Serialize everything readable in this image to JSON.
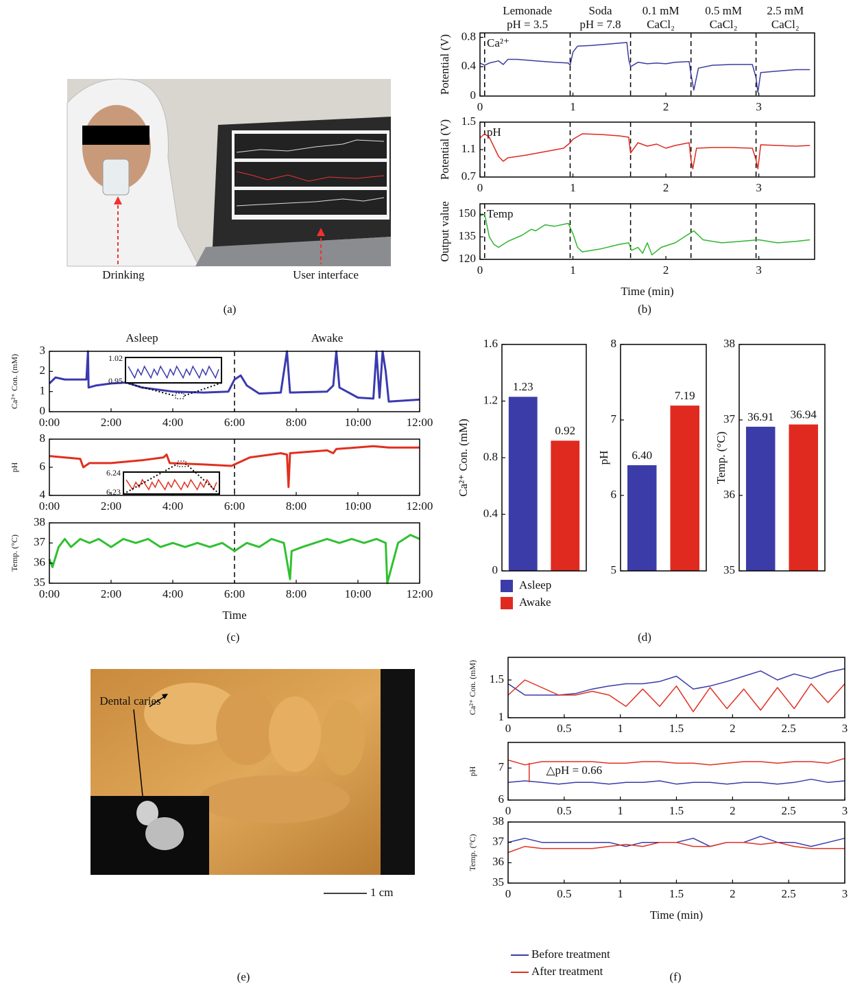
{
  "chart_data": [
    {
      "type": "line",
      "ylabel": "Potential (V)",
      "xlim": [
        0,
        3.6
      ],
      "ylim": [
        0,
        0.86
      ],
      "xticks": [
        0,
        1,
        2,
        3
      ],
      "yticks": [
        0,
        0.4,
        0.8
      ],
      "vlines": [
        0.05,
        0.97,
        1.62,
        2.27,
        2.97
      ],
      "legend": "top left",
      "conditions": [
        [
          "Lemonade",
          "pH = 3.5"
        ],
        [
          "Soda",
          "pH = 7.8"
        ],
        [
          "0.1 mM",
          "CaCl₂"
        ],
        [
          "0.5 mM",
          "CaCl₂"
        ],
        [
          "2.5 mM",
          "CaCl₂"
        ]
      ],
      "x": [
        0,
        0.05,
        0.1,
        0.2,
        0.25,
        0.3,
        0.4,
        0.6,
        0.8,
        0.95,
        0.97,
        1,
        1.05,
        1.2,
        1.4,
        1.58,
        1.6,
        1.62,
        1.7,
        1.8,
        1.9,
        2,
        2.1,
        2.25,
        2.27,
        2.3,
        2.35,
        2.5,
        2.7,
        2.93,
        2.97,
        2.99,
        3.02,
        3.2,
        3.4,
        3.55
      ],
      "series": [
        {
          "name": "Ca²⁺",
          "color": "#3b3ba0",
          "values": [
            0.45,
            0.42,
            0.45,
            0.48,
            0.43,
            0.5,
            0.5,
            0.48,
            0.46,
            0.45,
            0.42,
            0.6,
            0.68,
            0.69,
            0.71,
            0.73,
            0.5,
            0.4,
            0.46,
            0.44,
            0.45,
            0.44,
            0.46,
            0.47,
            0.3,
            0.08,
            0.38,
            0.42,
            0.43,
            0.43,
            0.25,
            0.05,
            0.32,
            0.34,
            0.36,
            0.36
          ]
        }
      ]
    },
    {
      "type": "line",
      "ylabel": "Potential (V)",
      "xlim": [
        0,
        3.6
      ],
      "ylim": [
        0.7,
        1.5
      ],
      "xticks": [
        0,
        1,
        2,
        3
      ],
      "yticks": [
        0.7,
        1.1,
        1.5
      ],
      "vlines": [
        0.05,
        0.97,
        1.62,
        2.27,
        2.97
      ],
      "legend": "top left",
      "x": [
        0,
        0.05,
        0.1,
        0.2,
        0.25,
        0.3,
        0.5,
        0.7,
        0.9,
        0.97,
        1,
        1.1,
        1.3,
        1.5,
        1.6,
        1.62,
        1.7,
        1.8,
        1.9,
        2,
        2.1,
        2.25,
        2.27,
        2.29,
        2.33,
        2.5,
        2.7,
        2.93,
        2.97,
        2.99,
        3.02,
        3.2,
        3.4,
        3.55
      ],
      "series": [
        {
          "name": "pH",
          "color": "#e0281e",
          "values": [
            1.27,
            1.33,
            1.28,
            1.0,
            0.93,
            0.98,
            1.02,
            1.07,
            1.12,
            1.2,
            1.25,
            1.33,
            1.32,
            1.3,
            1.28,
            1.05,
            1.2,
            1.15,
            1.18,
            1.12,
            1.16,
            1.2,
            0.95,
            0.82,
            1.12,
            1.13,
            1.13,
            1.12,
            0.95,
            0.82,
            1.17,
            1.16,
            1.15,
            1.16
          ]
        }
      ]
    },
    {
      "type": "line",
      "ylabel": "Output value",
      "xlabel": "Time (min)",
      "panel_label": "(b)",
      "xlim": [
        0,
        3.6
      ],
      "ylim": [
        120,
        157
      ],
      "xticks": [
        0,
        1,
        2,
        3
      ],
      "yticks": [
        120,
        135,
        150
      ],
      "vlines": [
        0.05,
        0.97,
        1.62,
        2.27,
        2.97
      ],
      "legend": "top left",
      "x": [
        0,
        0.05,
        0.1,
        0.15,
        0.2,
        0.3,
        0.45,
        0.55,
        0.6,
        0.7,
        0.8,
        0.95,
        1,
        1.05,
        1.1,
        1.3,
        1.5,
        1.6,
        1.63,
        1.7,
        1.75,
        1.8,
        1.85,
        1.95,
        2.1,
        2.25,
        2.3,
        2.4,
        2.6,
        2.8,
        3,
        3.2,
        3.4,
        3.55
      ],
      "series": [
        {
          "name": "Temp",
          "color": "#2fb52f",
          "values": [
            149,
            150,
            135,
            130,
            128,
            132,
            136,
            140,
            139,
            143,
            142,
            144,
            137,
            128,
            125,
            127,
            130,
            131,
            126,
            128,
            124,
            131,
            123,
            128,
            131,
            137,
            139,
            133,
            131,
            132,
            133,
            131,
            132,
            133
          ]
        }
      ]
    },
    {
      "type": "line",
      "ylabel": "Ca²⁺ Con. (mM)",
      "xlim": [
        0,
        12
      ],
      "ylim": [
        0,
        3
      ],
      "yticks": [
        0,
        1,
        2,
        3
      ],
      "xticks": [
        {
          "value": 0,
          "label": "0:00"
        },
        {
          "value": 2,
          "label": "2:00"
        },
        {
          "value": 4,
          "label": "4:00"
        },
        {
          "value": 6,
          "label": "6:00"
        },
        {
          "value": 8,
          "label": "8:00"
        },
        {
          "value": 10,
          "label": "10:00"
        },
        {
          "value": 12,
          "label": "12:00"
        }
      ],
      "vlines": [
        6
      ],
      "phases": [
        "Asleep",
        "Awake"
      ],
      "inset_labels": [
        1.02,
        0.95
      ],
      "x": [
        0,
        0.2,
        0.5,
        1,
        1.2,
        1.25,
        1.27,
        1.5,
        2,
        2.5,
        3,
        3.5,
        4,
        5,
        5.8,
        6,
        6.2,
        6.4,
        6.8,
        7.5,
        7.7,
        7.8,
        9,
        9.2,
        9.3,
        9.4,
        10,
        10.5,
        10.6,
        10.7,
        10.8,
        10.9,
        11,
        12
      ],
      "series": [
        {
          "color": "#3a3ab0",
          "values": [
            1.4,
            1.7,
            1.6,
            1.6,
            1.6,
            3,
            1.2,
            1.3,
            1.4,
            1.45,
            1.2,
            1.1,
            1,
            0.95,
            1,
            1.6,
            1.8,
            1.3,
            0.9,
            0.95,
            3,
            0.95,
            1,
            1.3,
            3,
            1.2,
            0.7,
            0.65,
            3,
            0.7,
            3,
            2,
            0.5,
            0.6
          ]
        }
      ]
    },
    {
      "type": "line",
      "ylabel": "pH",
      "xlim": [
        0,
        12
      ],
      "ylim": [
        4,
        8
      ],
      "yticks": [
        4,
        6,
        8
      ],
      "xticks": [
        {
          "value": 0,
          "label": "0:00"
        },
        {
          "value": 2,
          "label": "2:00"
        },
        {
          "value": 4,
          "label": "4:00"
        },
        {
          "value": 6,
          "label": "6:00"
        },
        {
          "value": 8,
          "label": "8:00"
        },
        {
          "value": 10,
          "label": "10:00"
        },
        {
          "value": 12,
          "label": "12:00"
        }
      ],
      "vlines": [
        6
      ],
      "inset_labels": [
        6.24,
        6.23
      ],
      "x": [
        0,
        1,
        1.1,
        1.3,
        2,
        3,
        3.7,
        3.8,
        3.9,
        5,
        5.9,
        6.5,
        7.5,
        7.7,
        7.75,
        7.8,
        9,
        9.2,
        9.3,
        10.5,
        11,
        12
      ],
      "series": [
        {
          "color": "#e03020",
          "values": [
            6.8,
            6.6,
            6,
            6.3,
            6.3,
            6.5,
            6.7,
            6.9,
            6.3,
            6.2,
            6.1,
            6.7,
            7,
            6.9,
            4.6,
            7,
            7.2,
            7,
            7.3,
            7.5,
            7.4,
            7.4
          ]
        }
      ]
    },
    {
      "type": "line",
      "ylabel": "Temp. (°C)",
      "xlabel": "Time",
      "panel_label": "(c)",
      "xlim": [
        0,
        12
      ],
      "ylim": [
        35,
        38
      ],
      "yticks": [
        35,
        36,
        37,
        38
      ],
      "xticks": [
        {
          "value": 0,
          "label": "0:00"
        },
        {
          "value": 2,
          "label": "2:00"
        },
        {
          "value": 4,
          "label": "4:00"
        },
        {
          "value": 6,
          "label": "6:00"
        },
        {
          "value": 8,
          "label": "8:00"
        },
        {
          "value": 10,
          "label": "10:00"
        },
        {
          "value": 12,
          "label": "12:00"
        }
      ],
      "vlines": [
        6
      ],
      "x": [
        0,
        0.1,
        0.3,
        0.5,
        0.7,
        1,
        1.3,
        1.6,
        2,
        2.4,
        2.8,
        3.2,
        3.6,
        4,
        4.4,
        4.8,
        5.2,
        5.6,
        6,
        6.4,
        6.8,
        7.2,
        7.6,
        7.8,
        7.85,
        8.2,
        8.6,
        9,
        9.4,
        9.8,
        10.2,
        10.6,
        10.9,
        10.95,
        11.3,
        11.7,
        12
      ],
      "series": [
        {
          "color": "#30c030",
          "values": [
            36.2,
            35.8,
            36.8,
            37.2,
            36.8,
            37.2,
            37,
            37.2,
            36.8,
            37.2,
            37,
            37.2,
            36.8,
            37,
            36.8,
            37,
            36.8,
            37,
            36.6,
            37,
            36.8,
            37.2,
            37,
            35.2,
            36.6,
            36.8,
            37,
            37.2,
            37,
            37.2,
            37,
            37.2,
            37,
            35,
            37,
            37.4,
            37.2
          ]
        }
      ]
    },
    {
      "type": "bar",
      "ylabel": "Ca²⁺ Con. (mM)",
      "ylim": [
        0,
        1.6
      ],
      "yticks": [
        0,
        0.4,
        0.8,
        1.2,
        1.6
      ],
      "legend": "below",
      "series": [
        {
          "name": "Asleep",
          "color": "#3c3ca8",
          "values": [
            1.23
          ]
        },
        {
          "name": "Awake",
          "color": "#e02a20",
          "values": [
            0.92
          ]
        }
      ]
    },
    {
      "type": "bar",
      "ylabel": "pH",
      "ylim": [
        5,
        8
      ],
      "yticks": [
        5,
        6,
        7,
        8
      ],
      "series": [
        {
          "color": "#3c3ca8",
          "values": [
            6.4
          ],
          "value_labels": [
            "6.40"
          ]
        },
        {
          "color": "#e02a20",
          "values": [
            7.19
          ]
        }
      ]
    },
    {
      "type": "bar",
      "ylabel": "Temp. (°C)",
      "panel_label": "(d)",
      "ylim": [
        35,
        38
      ],
      "yticks": [
        35,
        36,
        37,
        38
      ],
      "series": [
        {
          "color": "#3c3ca8",
          "values": [
            36.91
          ]
        },
        {
          "color": "#e02a20",
          "values": [
            36.94
          ]
        }
      ]
    },
    {
      "type": "line",
      "ylabel": "Ca²⁺ Con. (mM)",
      "xlim": [
        0,
        3
      ],
      "ylim": [
        1,
        1.8
      ],
      "xticks": [
        0,
        0.5,
        1,
        1.5,
        2,
        2.5,
        3
      ],
      "yticks": [
        1,
        1.5
      ],
      "x": [
        0,
        0.15,
        0.3,
        0.45,
        0.6,
        0.75,
        0.9,
        1.05,
        1.2,
        1.35,
        1.5,
        1.65,
        1.8,
        1.95,
        2.1,
        2.25,
        2.4,
        2.55,
        2.7,
        2.85,
        3
      ],
      "series": [
        {
          "color": "#3a3aa8",
          "values": [
            1.45,
            1.3,
            1.3,
            1.3,
            1.32,
            1.38,
            1.42,
            1.45,
            1.45,
            1.48,
            1.55,
            1.38,
            1.42,
            1.48,
            1.55,
            1.62,
            1.5,
            1.58,
            1.52,
            1.6,
            1.65
          ]
        },
        {
          "color": "#e03020",
          "values": [
            1.3,
            1.5,
            1.4,
            1.3,
            1.3,
            1.35,
            1.3,
            1.15,
            1.38,
            1.15,
            1.42,
            1.08,
            1.4,
            1.12,
            1.38,
            1.1,
            1.4,
            1.12,
            1.45,
            1.2,
            1.45
          ]
        }
      ]
    },
    {
      "type": "line",
      "ylabel": "pH",
      "xlim": [
        0,
        3
      ],
      "ylim": [
        6,
        7.8
      ],
      "xticks": [
        0,
        0.5,
        1,
        1.5,
        2,
        2.5,
        3
      ],
      "yticks": [
        6,
        7
      ],
      "annotation": "△pH = 0.66",
      "x": [
        0,
        0.15,
        0.3,
        0.45,
        0.6,
        0.75,
        0.9,
        1.05,
        1.2,
        1.35,
        1.5,
        1.65,
        1.8,
        1.95,
        2.1,
        2.25,
        2.4,
        2.55,
        2.7,
        2.85,
        3
      ],
      "series": [
        {
          "color": "#3a3aa8",
          "values": [
            6.55,
            6.6,
            6.55,
            6.5,
            6.55,
            6.55,
            6.5,
            6.55,
            6.55,
            6.6,
            6.5,
            6.55,
            6.55,
            6.5,
            6.55,
            6.55,
            6.5,
            6.55,
            6.65,
            6.55,
            6.6
          ]
        },
        {
          "color": "#e03020",
          "values": [
            7.25,
            7.1,
            7.2,
            7.2,
            7.2,
            7.2,
            7.15,
            7.15,
            7.2,
            7.2,
            7.15,
            7.15,
            7.1,
            7.15,
            7.2,
            7.2,
            7.15,
            7.2,
            7.2,
            7.15,
            7.3
          ]
        }
      ]
    },
    {
      "type": "line",
      "ylabel": "Temp. (°C)",
      "xlabel": "Time (min)",
      "panel_label": "(f)",
      "xlim": [
        0,
        3
      ],
      "ylim": [
        35,
        38
      ],
      "xticks": [
        0,
        0.5,
        1,
        1.5,
        2,
        2.5,
        3
      ],
      "yticks": [
        35,
        36,
        37,
        38
      ],
      "legend": "below",
      "x": [
        0,
        0.15,
        0.3,
        0.45,
        0.6,
        0.75,
        0.9,
        1.05,
        1.2,
        1.35,
        1.5,
        1.65,
        1.8,
        1.95,
        2.1,
        2.25,
        2.4,
        2.55,
        2.7,
        2.85,
        3
      ],
      "series": [
        {
          "name": "Before treatment",
          "color": "#3a3aa8",
          "values": [
            37,
            37.2,
            37,
            37,
            37,
            37,
            37,
            36.8,
            37,
            37,
            37,
            37.2,
            36.8,
            37,
            37,
            37.3,
            37,
            37,
            36.8,
            37,
            37.2
          ]
        },
        {
          "name": "After treatment",
          "color": "#e03020",
          "values": [
            36.5,
            36.8,
            36.7,
            36.7,
            36.7,
            36.7,
            36.8,
            36.9,
            36.8,
            37,
            37,
            36.8,
            36.8,
            37,
            37,
            36.9,
            37,
            36.8,
            36.7,
            36.7,
            36.7
          ]
        }
      ]
    }
  ],
  "images": {
    "a": {
      "labels": [
        "Drinking",
        "User interface"
      ],
      "panel_label": "(a)"
    },
    "e": {
      "callout": "Dental caries",
      "scale": "1 cm",
      "panel_label": "(e)"
    }
  }
}
